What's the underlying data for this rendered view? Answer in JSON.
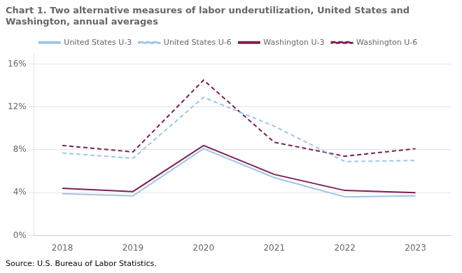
{
  "chart_data": {
    "type": "line",
    "title": "Chart 1. Two alternative measures of labor underutilization, United States and\nWashington, annual averages",
    "source": "Source: U.S. Bureau of Labor Statistics.",
    "x": [
      2018,
      2019,
      2020,
      2021,
      2022,
      2023
    ],
    "series": [
      {
        "name": "United States U-3",
        "color": "#9ec6e8",
        "line_style": "solid",
        "values": [
          3.9,
          3.7,
          8.1,
          5.4,
          3.6,
          3.7
        ]
      },
      {
        "name": "United States U-6",
        "color": "#9ec6e8",
        "line_style": "dashed",
        "values": [
          7.7,
          7.2,
          12.9,
          10.2,
          6.9,
          7.0
        ]
      },
      {
        "name": "Washington U-3",
        "color": "#7b2052",
        "line_style": "solid",
        "values": [
          4.4,
          4.1,
          8.4,
          5.7,
          4.2,
          4.0
        ]
      },
      {
        "name": "Washington U-6",
        "color": "#7b2052",
        "line_style": "dashed",
        "values": [
          8.4,
          7.8,
          14.5,
          8.7,
          7.4,
          8.1
        ]
      }
    ],
    "xlim": [
      2017.6,
      2023.5
    ],
    "xticks": [
      2018,
      2019,
      2020,
      2021,
      2022,
      2023
    ],
    "ylim": [
      0,
      17
    ],
    "yticks": [
      {
        "value": 0,
        "label": "0%"
      },
      {
        "value": 4,
        "label": "4%"
      },
      {
        "value": 8,
        "label": "8%"
      },
      {
        "value": 12,
        "label": "12%"
      },
      {
        "value": 16,
        "label": "16%"
      }
    ],
    "grid": "y",
    "legend": "top"
  }
}
